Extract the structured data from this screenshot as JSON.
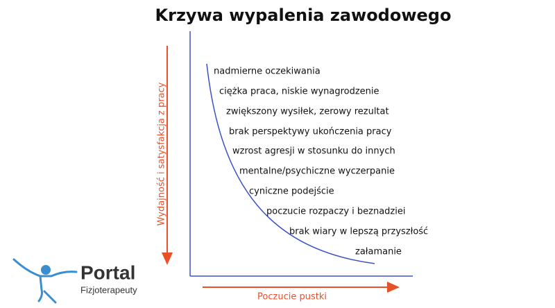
{
  "title": "Krzywa wypalenia zawodowego",
  "y_axis_label": "Wydajność i satysfakcja z pracy",
  "x_axis_label": "Poczucie pustki",
  "stages": [
    "nadmierne oczekiwania",
    "ciężka praca, niskie wynagrodzenie",
    "zwiększony wysiłek, zerowy rezultat",
    "brak perspektywy ukończenia pracy",
    "wzrost agresji w stosunku do innych",
    "mentalne/psychiczne wyczerpanie",
    "cyniczne podejście",
    "poczucie rozpaczy i beznadziei",
    "brak wiary w lepszą przyszłość",
    "załamanie"
  ],
  "logo": {
    "name": "Portal",
    "tagline": "Fizjoterapeuty"
  }
}
